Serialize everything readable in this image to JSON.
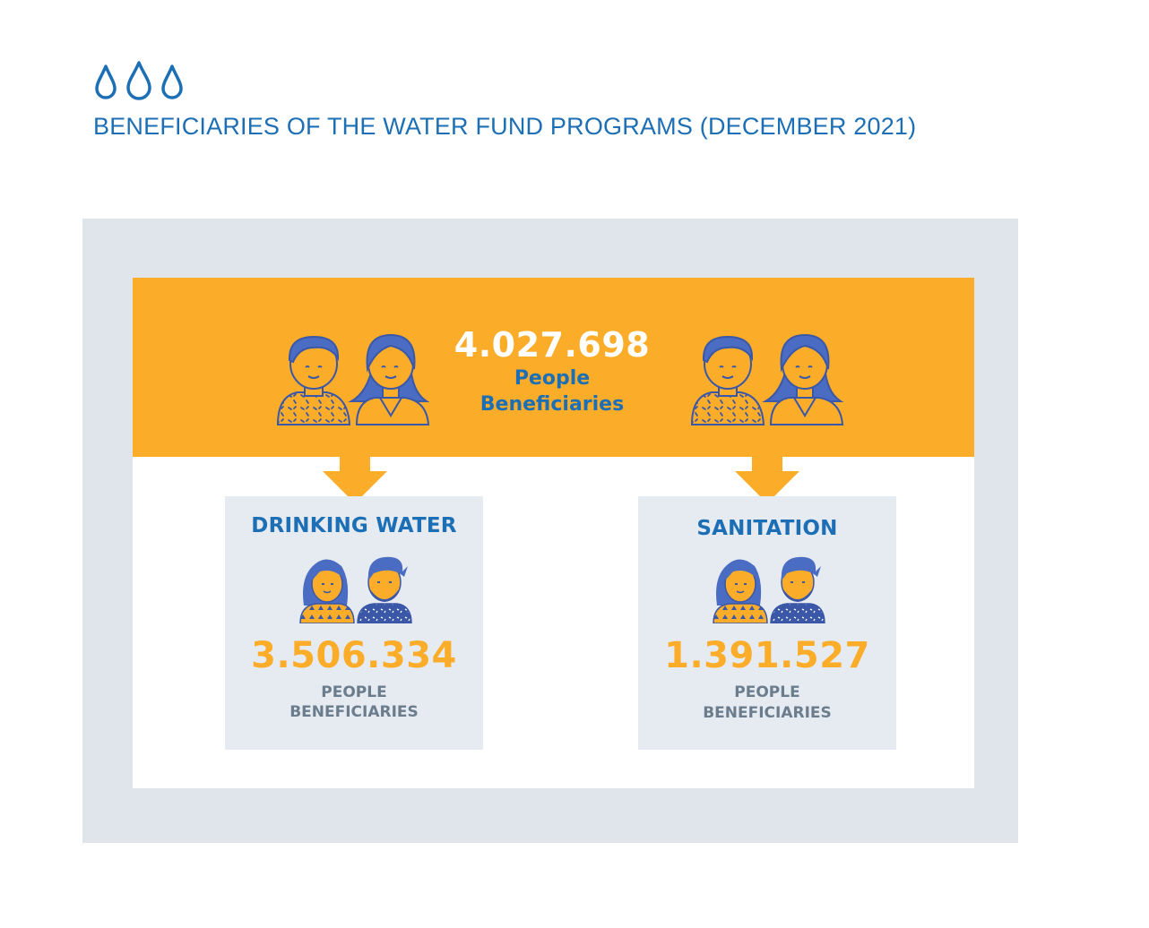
{
  "header": {
    "icon": "water-drops-icon",
    "title": "BENEFICIARIES OF THE WATER FUND PROGRAMS (DECEMBER 2021)"
  },
  "total": {
    "value": "4.027.698",
    "label_line1": "People",
    "label_line2": "Beneficiaries"
  },
  "programs": [
    {
      "name": "DRINKING WATER",
      "value": "3.506.334",
      "label_line1": "PEOPLE",
      "label_line2": "BENEFICIARIES"
    },
    {
      "name": "SANITATION",
      "value": "1.391.527",
      "label_line1": "PEOPLE",
      "label_line2": "BENEFICIARIES"
    }
  ],
  "colors": {
    "blue": "#1d6fb5",
    "orange": "#fbad2a",
    "outer_frame": "#e0e5eb",
    "card_bg": "#e6ebf2",
    "label_gray": "#6b7d8c"
  }
}
